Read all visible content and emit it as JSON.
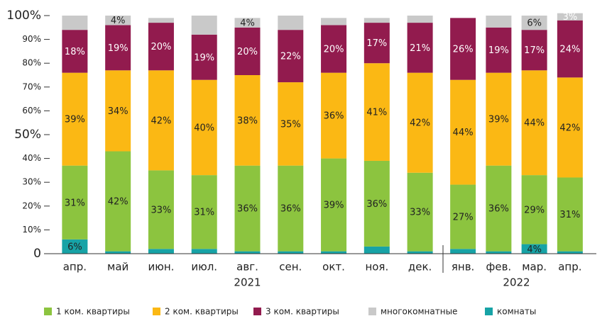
{
  "chart_data": {
    "type": "stacked_bar",
    "groups": [
      {
        "name": "2021",
        "categories": [
          "апр.",
          "май",
          "июн.",
          "июл.",
          "авг.",
          "сен.",
          "окт.",
          "ноя.",
          "дек."
        ]
      },
      {
        "name": "2022",
        "categories": [
          "янв.",
          "фев.",
          "мар.",
          "апр."
        ]
      }
    ],
    "series": [
      {
        "name": "комнаты",
        "color": "#17a3a6",
        "values": [
          6,
          1,
          2,
          2,
          1,
          1,
          1,
          3,
          1,
          2,
          1,
          4,
          1
        ],
        "value_labels": [
          "6%",
          null,
          null,
          null,
          null,
          null,
          null,
          null,
          null,
          null,
          null,
          "4%",
          null
        ]
      },
      {
        "name": "1 ком. квартиры",
        "color": "#8cc43f",
        "values": [
          31,
          42,
          33,
          31,
          36,
          36,
          39,
          36,
          33,
          27,
          36,
          29,
          31
        ],
        "value_labels": [
          "31%",
          "42%",
          "33%",
          "31%",
          "36%",
          "36%",
          "39%",
          "36%",
          "33%",
          "27%",
          "36%",
          "29%",
          "31%"
        ]
      },
      {
        "name": "2 ком. квартиры",
        "color": "#fbb814",
        "values": [
          39,
          34,
          42,
          40,
          38,
          35,
          36,
          41,
          42,
          44,
          39,
          44,
          42
        ],
        "value_labels": [
          "39%",
          "34%",
          "42%",
          "40%",
          "38%",
          "35%",
          "36%",
          "41%",
          "42%",
          "44%",
          "39%",
          "44%",
          "42%"
        ]
      },
      {
        "name": "3 ком. квартиры",
        "color": "#921b4e",
        "values": [
          18,
          19,
          20,
          19,
          20,
          22,
          20,
          17,
          21,
          26,
          19,
          17,
          24
        ],
        "value_labels": [
          "18%",
          "19%",
          "20%",
          "19%",
          "20%",
          "22%",
          "20%",
          "17%",
          "21%",
          "26%",
          "19%",
          "17%",
          "24%"
        ]
      },
      {
        "name": "многокомнатные",
        "color": "#c9c9c9",
        "values": [
          6,
          4,
          2,
          8,
          4,
          6,
          3,
          2,
          3,
          0,
          5,
          6,
          3
        ],
        "value_labels": [
          null,
          "4%",
          null,
          null,
          "4%",
          null,
          null,
          null,
          null,
          null,
          null,
          "6%",
          "3%"
        ]
      }
    ],
    "ylim": [
      0,
      100
    ],
    "yticks": [
      0,
      {
        "value": 10,
        "label": "10%"
      },
      {
        "value": 20,
        "label": "20%"
      },
      {
        "value": 30,
        "label": "30%"
      },
      {
        "value": 40,
        "label": "40%"
      },
      {
        "value": 50,
        "label": "50%"
      },
      {
        "value": 60,
        "label": "60%"
      },
      {
        "value": 70,
        "label": "70%"
      },
      {
        "value": 80,
        "label": "80%"
      },
      {
        "value": 90,
        "label": "90%"
      },
      {
        "value": 100,
        "label": "100%"
      }
    ],
    "grid": false
  }
}
